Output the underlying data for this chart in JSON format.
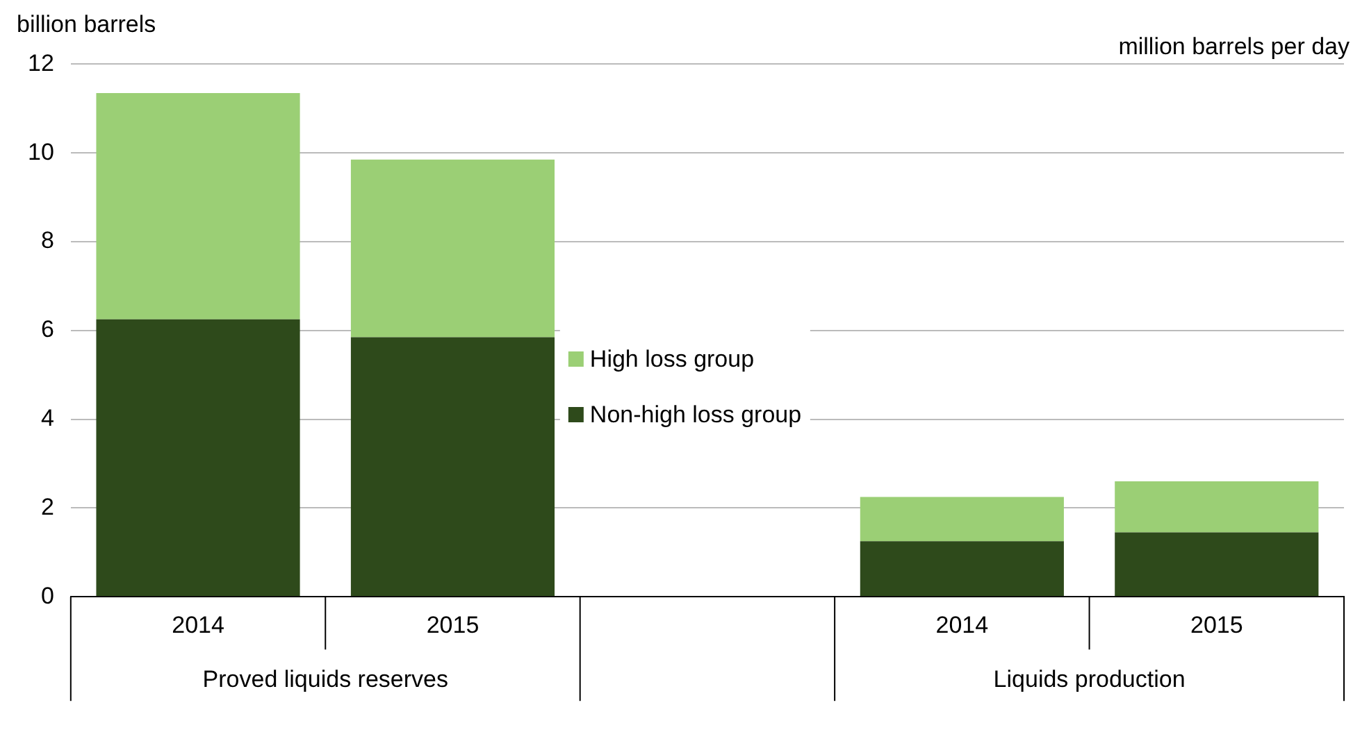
{
  "chart_data": {
    "type": "bar",
    "stacked": true,
    "ylabel": "billion barrels",
    "y2label": "million barrels per day",
    "categories": [
      "2014",
      "2015",
      null,
      "2014",
      "2015"
    ],
    "series": [
      {
        "name": "Non-high loss group",
        "color": "#2e4a1b",
        "values": [
          6.25,
          5.85,
          null,
          1.25,
          1.45
        ]
      },
      {
        "name": "High loss group",
        "color": "#9bcf75",
        "values": [
          5.1,
          4.0,
          null,
          1.0,
          1.15
        ]
      }
    ],
    "ylim": [
      0,
      12
    ],
    "yticks": [
      0,
      2,
      4,
      6,
      8,
      10,
      12
    ],
    "grid": "y",
    "legend": "center",
    "annotations": [
      "Proved liquids reserves",
      "Liquids production"
    ]
  }
}
